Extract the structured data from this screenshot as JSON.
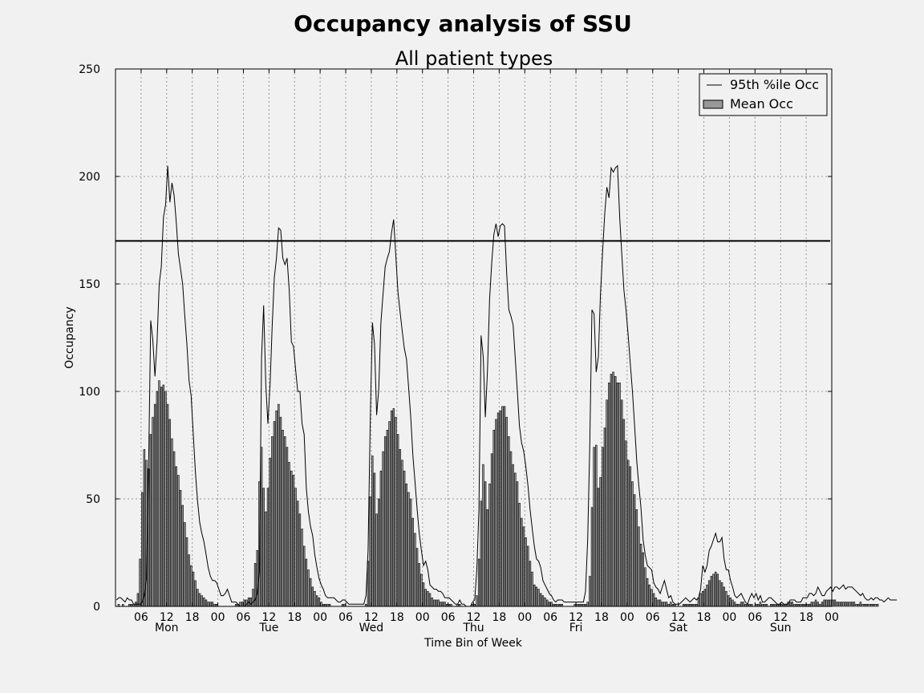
{
  "chart_data": {
    "type": "bar",
    "title": "Occupancy analysis of SSU",
    "subtitle": "All patient types",
    "xlabel": "Time Bin of Week",
    "ylabel": "Occupancy",
    "ylim": [
      0,
      250
    ],
    "yticks": [
      0,
      50,
      100,
      150,
      200,
      250
    ],
    "xlim_hours": [
      0,
      168
    ],
    "xtick_labels": [
      "06",
      "12",
      "18",
      "00",
      "06",
      "12",
      "18",
      "00",
      "06",
      "12",
      "18",
      "00",
      "06",
      "12",
      "18",
      "00",
      "06",
      "12",
      "18",
      "00",
      "06",
      "12",
      "18",
      "00",
      "06",
      "12",
      "18",
      "00"
    ],
    "day_labels": [
      "Mon",
      "Tue",
      "Wed",
      "Thu",
      "Fri",
      "Sat",
      "Sun"
    ],
    "grid": true,
    "legend_placement": "top-right",
    "legend": [
      "95th %ile Occ",
      "Mean Occ"
    ],
    "reference_line": 170,
    "colors": {
      "bar": "#999999",
      "line": "#000000",
      "background": "#f1f1f1",
      "plot": "#f1f1f1"
    },
    "bin_width_hours": 0.5,
    "series": [
      {
        "name": "Mean Occ",
        "type": "bar",
        "values": [
          0,
          1,
          0,
          1,
          0,
          0,
          1,
          1,
          1,
          2,
          6,
          22,
          53,
          73,
          68,
          64,
          80,
          88,
          94,
          100,
          105,
          102,
          103,
          100,
          94,
          87,
          78,
          72,
          65,
          61,
          54,
          47,
          39,
          32,
          24,
          19,
          16,
          12,
          8,
          6,
          5,
          4,
          3,
          2,
          2,
          2,
          1,
          1,
          0,
          0,
          0,
          0,
          0,
          0,
          0,
          0,
          1,
          1,
          2,
          2,
          3,
          3,
          4,
          4,
          8,
          20,
          26,
          58,
          74,
          55,
          44,
          55,
          69,
          79,
          86,
          91,
          94,
          88,
          82,
          79,
          74,
          67,
          63,
          61,
          55,
          49,
          43,
          36,
          28,
          22,
          17,
          13,
          9,
          7,
          5,
          4,
          2,
          1,
          1,
          1,
          1,
          0,
          0,
          0,
          0,
          0,
          1,
          1,
          0,
          0,
          0,
          0,
          0,
          0,
          0,
          0,
          0,
          1,
          21,
          51,
          70,
          62,
          43,
          50,
          63,
          72,
          79,
          82,
          86,
          91,
          92,
          88,
          80,
          73,
          68,
          63,
          57,
          53,
          50,
          41,
          34,
          27,
          20,
          15,
          11,
          8,
          7,
          6,
          4,
          3,
          3,
          3,
          2,
          2,
          2,
          1,
          1,
          1,
          0,
          0,
          1,
          1,
          0,
          0,
          0,
          0,
          0,
          1,
          1,
          5,
          22,
          49,
          66,
          58,
          45,
          57,
          71,
          82,
          87,
          90,
          91,
          93,
          93,
          88,
          79,
          72,
          66,
          62,
          58,
          48,
          41,
          37,
          32,
          28,
          21,
          16,
          10,
          9,
          8,
          6,
          5,
          4,
          3,
          2,
          2,
          1,
          1,
          1,
          1,
          1,
          0,
          0,
          0,
          0,
          0,
          1,
          1,
          1,
          1,
          1,
          1,
          2,
          14,
          46,
          74,
          75,
          55,
          60,
          74,
          83,
          96,
          104,
          108,
          109,
          107,
          104,
          104,
          96,
          87,
          77,
          68,
          65,
          58,
          52,
          45,
          37,
          29,
          25,
          18,
          13,
          10,
          8,
          6,
          4,
          3,
          3,
          2,
          2,
          2,
          1,
          2,
          1,
          1,
          0,
          0,
          0,
          1,
          1,
          1,
          1,
          1,
          1,
          1,
          4,
          6,
          7,
          8,
          10,
          12,
          14,
          15,
          16,
          15,
          12,
          11,
          9,
          7,
          5,
          4,
          3,
          2,
          1,
          1,
          2,
          2,
          1,
          1,
          1,
          1,
          0,
          1,
          1,
          2,
          1,
          1,
          1,
          0,
          1,
          1,
          1,
          1,
          1,
          1,
          1,
          1,
          2,
          2,
          2,
          1,
          1,
          1,
          1,
          1,
          1,
          1,
          1,
          2,
          2,
          3,
          2,
          1,
          2,
          3,
          3,
          3,
          3,
          3,
          3,
          2,
          2,
          2,
          2,
          2,
          2,
          2,
          2,
          2,
          1,
          1,
          2,
          1,
          1,
          1,
          1,
          1,
          1,
          1,
          1
        ]
      },
      {
        "name": "95th %ile Occ",
        "type": "line",
        "values": [
          3,
          4,
          4,
          3,
          2,
          4,
          3,
          3,
          1,
          1,
          1,
          1,
          2,
          5,
          13,
          63,
          133,
          124,
          107,
          123,
          150,
          158,
          181,
          187,
          205,
          188,
          197,
          191,
          179,
          164,
          157,
          150,
          135,
          122,
          105,
          98,
          80,
          62,
          49,
          39,
          34,
          30,
          24,
          18,
          14,
          12,
          12,
          11,
          8,
          5,
          5,
          6,
          8,
          5,
          2,
          2,
          2,
          1,
          0,
          0,
          0,
          1,
          2,
          1,
          2,
          3,
          6,
          16,
          116,
          140,
          103,
          85,
          103,
          130,
          153,
          162,
          176,
          175,
          162,
          159,
          162,
          147,
          123,
          121,
          110,
          100,
          100,
          85,
          80,
          55,
          44,
          37,
          33,
          24,
          18,
          13,
          10,
          8,
          5,
          4,
          4,
          4,
          4,
          3,
          2,
          2,
          3,
          3,
          2,
          1,
          1,
          1,
          1,
          1,
          1,
          1,
          1,
          5,
          26,
          86,
          132,
          122,
          89,
          101,
          132,
          145,
          158,
          162,
          165,
          174,
          180,
          163,
          146,
          137,
          128,
          120,
          115,
          102,
          88,
          70,
          58,
          45,
          34,
          26,
          19,
          21,
          17,
          10,
          9,
          8,
          8,
          7,
          7,
          6,
          4,
          4,
          4,
          3,
          2,
          1,
          1,
          3,
          1,
          1,
          0,
          0,
          0,
          2,
          3,
          17,
          45,
          126,
          116,
          88,
          110,
          143,
          160,
          173,
          178,
          172,
          177,
          178,
          177,
          155,
          138,
          135,
          131,
          116,
          100,
          84,
          76,
          72,
          65,
          56,
          45,
          36,
          28,
          22,
          21,
          18,
          12,
          10,
          8,
          6,
          5,
          3,
          2,
          3,
          3,
          3,
          2,
          2,
          2,
          2,
          2,
          2,
          2,
          2,
          2,
          2,
          7,
          31,
          75,
          138,
          136,
          109,
          116,
          145,
          165,
          183,
          195,
          190,
          204,
          202,
          204,
          205,
          181,
          164,
          147,
          138,
          126,
          113,
          100,
          84,
          68,
          56,
          46,
          31,
          24,
          19,
          18,
          17,
          11,
          9,
          8,
          6,
          9,
          12,
          8,
          4,
          5,
          2,
          1,
          1,
          1,
          2,
          3,
          4,
          3,
          2,
          3,
          4,
          3,
          4,
          8,
          19,
          16,
          19,
          26,
          28,
          31,
          34,
          30,
          30,
          32,
          22,
          17,
          17,
          12,
          9,
          5,
          4,
          5,
          6,
          4,
          2,
          1,
          4,
          6,
          4,
          6,
          3,
          5,
          2,
          2,
          3,
          4,
          4,
          3,
          2,
          1,
          1,
          2,
          1,
          1,
          1,
          3,
          3,
          3,
          2,
          2,
          2,
          4,
          4,
          4,
          6,
          6,
          5,
          6,
          9,
          7,
          5,
          5,
          7,
          8,
          9,
          7,
          9,
          9,
          8,
          9,
          10,
          8,
          9,
          9,
          9,
          8,
          7,
          6,
          5,
          6,
          4,
          3,
          3,
          4,
          3,
          4,
          4,
          3,
          3,
          2,
          3,
          4,
          3,
          3,
          3,
          3
        ]
      }
    ]
  }
}
